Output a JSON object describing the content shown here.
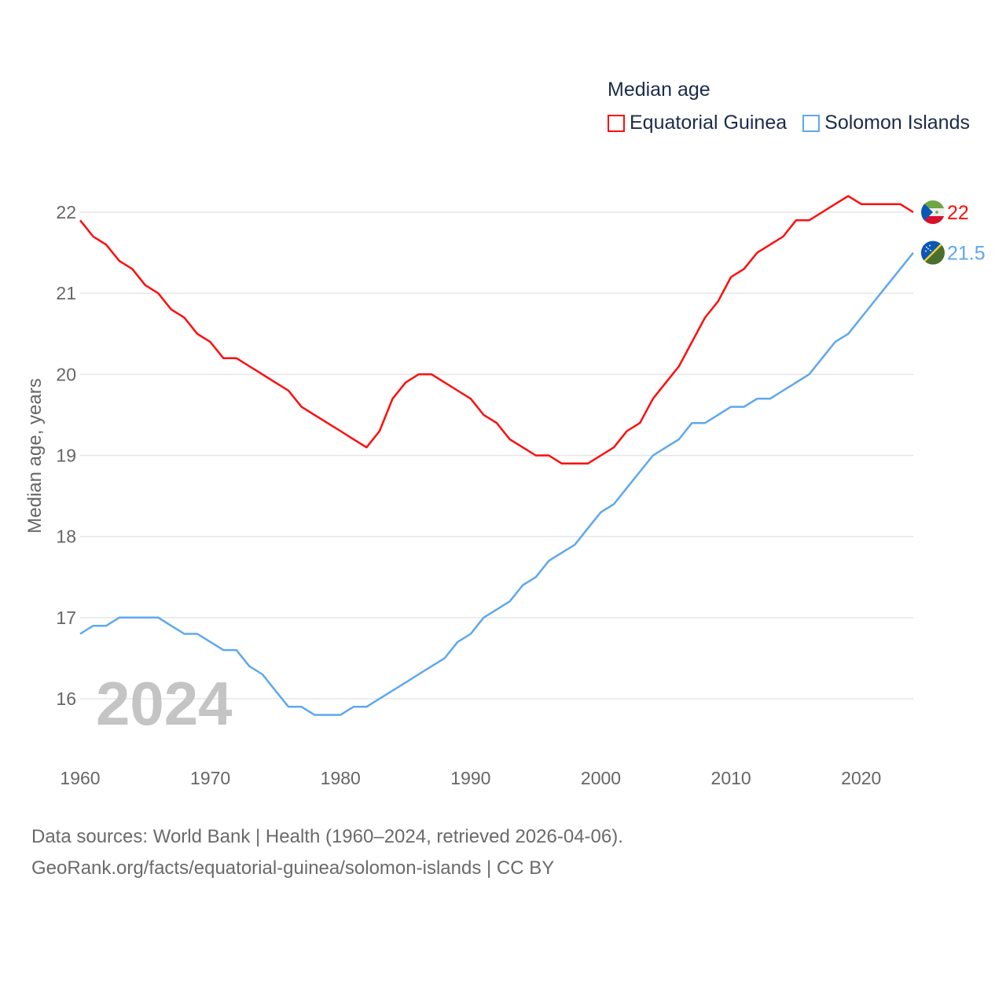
{
  "chart_data": {
    "type": "line",
    "title": "Median age",
    "xlabel": "",
    "ylabel": "Median age, years",
    "xlim": [
      1960,
      2024
    ],
    "ylim": [
      15.4,
      22.5
    ],
    "x_ticks": [
      "1960",
      "1970",
      "1980",
      "1990",
      "2000",
      "2010",
      "2020"
    ],
    "y_ticks": [
      "16",
      "17",
      "18",
      "19",
      "20",
      "21",
      "22"
    ],
    "grid": true,
    "legend_placement": "top-right",
    "year_label": "2024",
    "x": [
      1960,
      1961,
      1962,
      1963,
      1964,
      1965,
      1966,
      1967,
      1968,
      1969,
      1970,
      1971,
      1972,
      1973,
      1974,
      1975,
      1976,
      1977,
      1978,
      1979,
      1980,
      1981,
      1982,
      1983,
      1984,
      1985,
      1986,
      1987,
      1988,
      1989,
      1990,
      1991,
      1992,
      1993,
      1994,
      1995,
      1996,
      1997,
      1998,
      1999,
      2000,
      2001,
      2002,
      2003,
      2004,
      2005,
      2006,
      2007,
      2008,
      2009,
      2010,
      2011,
      2012,
      2013,
      2014,
      2015,
      2016,
      2017,
      2018,
      2019,
      2020,
      2021,
      2022,
      2023,
      2024
    ],
    "series": [
      {
        "name": "Equatorial Guinea",
        "color": "#ff0d0d",
        "end_label": "22",
        "flag": "equatorial-guinea-flag",
        "values": [
          21.9,
          21.7,
          21.6,
          21.4,
          21.3,
          21.1,
          21.0,
          20.8,
          20.7,
          20.5,
          20.4,
          20.2,
          20.2,
          20.1,
          20.0,
          19.9,
          19.8,
          19.6,
          19.5,
          19.4,
          19.3,
          19.2,
          19.1,
          19.3,
          19.7,
          19.9,
          20.0,
          20.0,
          19.9,
          19.8,
          19.7,
          19.5,
          19.4,
          19.2,
          19.1,
          19.0,
          19.0,
          18.9,
          18.9,
          18.9,
          19.0,
          19.1,
          19.3,
          19.4,
          19.7,
          19.9,
          20.1,
          20.4,
          20.7,
          20.9,
          21.2,
          21.3,
          21.5,
          21.6,
          21.7,
          21.9,
          21.9,
          22.0,
          22.1,
          22.2,
          22.1,
          22.1,
          22.1,
          22.1,
          22.0
        ]
      },
      {
        "name": "Solomon Islands",
        "color": "#5ea8ee",
        "end_label": "21.5",
        "flag": "solomon-islands-flag",
        "values": [
          16.8,
          16.9,
          16.9,
          17.0,
          17.0,
          17.0,
          17.0,
          16.9,
          16.8,
          16.8,
          16.7,
          16.6,
          16.6,
          16.4,
          16.3,
          16.1,
          15.9,
          15.9,
          15.8,
          15.8,
          15.8,
          15.9,
          15.9,
          16.0,
          16.1,
          16.2,
          16.3,
          16.4,
          16.5,
          16.7,
          16.8,
          17.0,
          17.1,
          17.2,
          17.4,
          17.5,
          17.7,
          17.8,
          17.9,
          18.1,
          18.3,
          18.4,
          18.6,
          18.8,
          19.0,
          19.1,
          19.2,
          19.4,
          19.4,
          19.5,
          19.6,
          19.6,
          19.7,
          19.7,
          19.8,
          19.9,
          20.0,
          20.2,
          20.4,
          20.5,
          20.7,
          20.9,
          21.1,
          21.3,
          21.5
        ]
      }
    ]
  },
  "footer": {
    "line1": "Data sources: World Bank | Health (1960–2024, retrieved 2026-04-06).",
    "line2": "GeoRank.org/facts/equatorial-guinea/solomon-islands | CC BY"
  }
}
